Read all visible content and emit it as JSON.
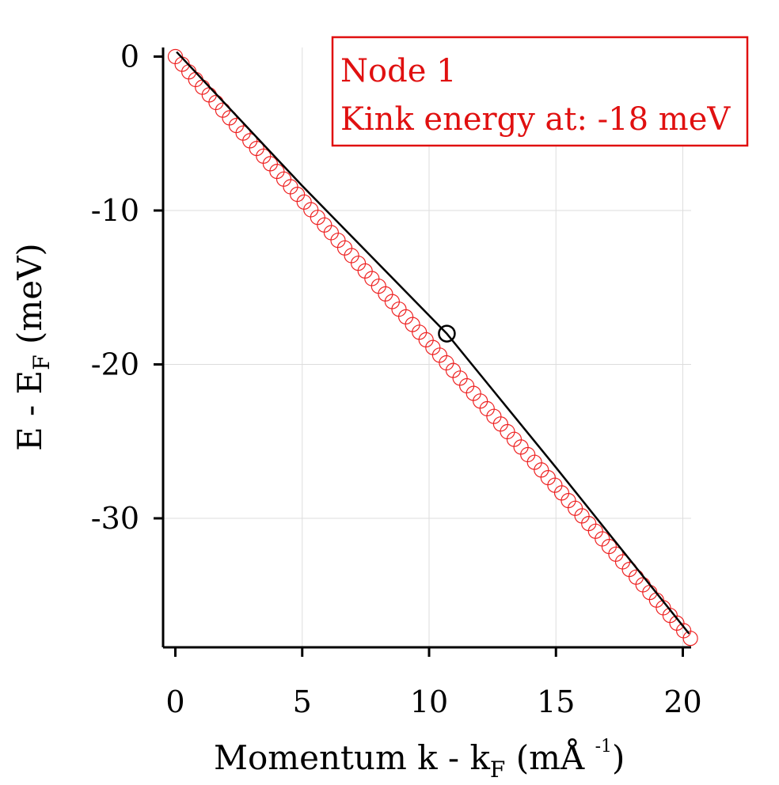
{
  "chart_data": {
    "type": "scatter",
    "xlabel": {
      "main": "Momentum  k - k",
      "sub": "F",
      "unit": "  (mÅ ",
      "sup": "-1",
      "close": ")"
    },
    "ylabel": {
      "main": "E - E",
      "sub": "F",
      "unit": " (meV)"
    },
    "xlim": [
      -0.4,
      20.6
    ],
    "ylim": [
      -38.5,
      0.8
    ],
    "x_ticks": [
      0,
      5,
      10,
      15,
      20
    ],
    "y_ticks": [
      0,
      -10,
      -20,
      -30
    ],
    "x_tick_labels": [
      "0",
      "5",
      "10",
      "15",
      "20"
    ],
    "y_tick_labels": [
      "0",
      "-10",
      "-20",
      "-30"
    ],
    "grid": true,
    "series": [
      {
        "kind": "markers",
        "color": "#ee2222",
        "x_start": 0,
        "x_end": 20.3,
        "count": 77,
        "y_at_x_start": 0,
        "y_at_x_end": -37.8
      },
      {
        "kind": "line",
        "color": "#000000",
        "points": [
          [
            0.05,
            0.3
          ],
          [
            5.0,
            -8.4
          ],
          [
            10.7,
            -18.0
          ],
          [
            15.0,
            -26.7
          ],
          [
            20.25,
            -37.5
          ]
        ]
      }
    ],
    "highlight": {
      "x": 10.7,
      "y": -18.0,
      "color": "#000000"
    },
    "annotation": {
      "lines": [
        "Node 1",
        "Kink energy at: -18 meV"
      ],
      "color": "#e01010",
      "position": "top-right"
    }
  }
}
